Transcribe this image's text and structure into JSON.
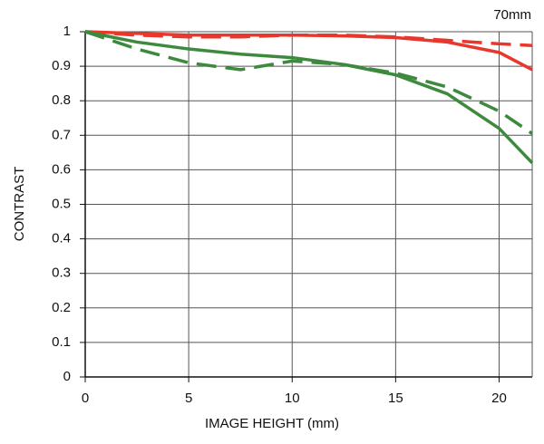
{
  "chart_data": {
    "type": "line",
    "title": "70mm",
    "x_label": "IMAGE HEIGHT (mm)",
    "y_label": "CONTRAST",
    "x": [
      0,
      2.5,
      5,
      7.5,
      10,
      12.5,
      15,
      17.5,
      20,
      21.6
    ],
    "series": [
      {
        "color": "#e8372c",
        "style": "solid",
        "values": [
          1,
          0.995,
          0.99,
          0.99,
          0.99,
          0.988,
          0.983,
          0.97,
          0.94,
          0.89
        ]
      },
      {
        "color": "#e8372c",
        "style": "dashed",
        "values": [
          1,
          0.99,
          0.985,
          0.985,
          0.99,
          0.99,
          0.985,
          0.975,
          0.965,
          0.96
        ]
      },
      {
        "color": "#3d8a3e",
        "style": "solid",
        "values": [
          1,
          0.97,
          0.95,
          0.935,
          0.925,
          0.905,
          0.875,
          0.82,
          0.72,
          0.62
        ]
      },
      {
        "color": "#3d8a3e",
        "style": "dashed",
        "values": [
          1,
          0.95,
          0.91,
          0.89,
          0.915,
          0.905,
          0.88,
          0.84,
          0.77,
          0.705
        ]
      }
    ],
    "xlim": [
      0,
      21.6
    ],
    "ylim": [
      0,
      1
    ],
    "xticks": [
      0,
      5,
      10,
      15,
      20
    ],
    "yticks": [
      0,
      0.1,
      0.2,
      0.3,
      0.4,
      0.5,
      0.6,
      0.7,
      0.8,
      0.9,
      1
    ],
    "grid": true
  }
}
